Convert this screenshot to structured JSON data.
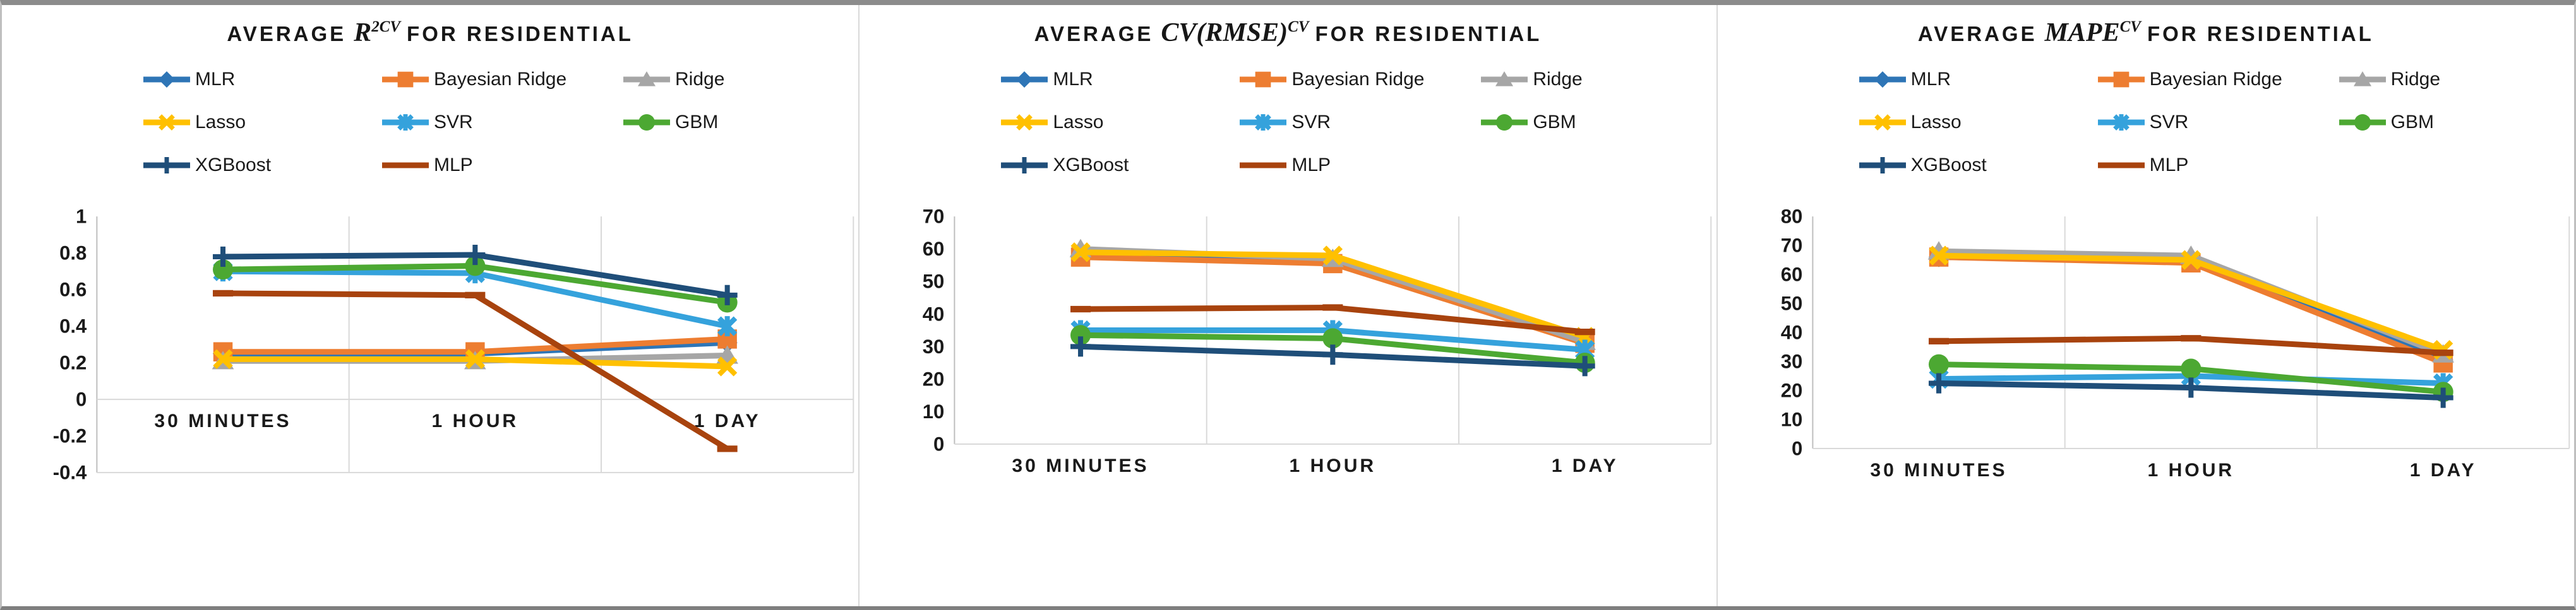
{
  "figure": {
    "description": "Three line charts comparing machine-learning model performance for residential load forecasting",
    "background": "#ffffff",
    "frame_color": "#8c8c8c",
    "separator_color": "#d9d9d9",
    "gridline_color": "#d9d9d9",
    "axis_color": "#bfbfbf"
  },
  "series_meta": [
    {
      "name": "MLR",
      "color": "#2E75B6",
      "marker": "diamond"
    },
    {
      "name": "Bayesian Ridge",
      "color": "#ED7D31",
      "marker": "square"
    },
    {
      "name": "Ridge",
      "color": "#A6A6A6",
      "marker": "triangle"
    },
    {
      "name": "Lasso",
      "color": "#FFC000",
      "marker": "x"
    },
    {
      "name": "SVR",
      "color": "#35A2DC",
      "marker": "asterisk"
    },
    {
      "name": "GBM",
      "color": "#4CA832",
      "marker": "circle"
    },
    {
      "name": "XGBoost",
      "color": "#1F4E79",
      "marker": "plus"
    },
    {
      "name": "MLP",
      "color": "#A8430E",
      "marker": "dash"
    }
  ],
  "chart_data": [
    {
      "type": "line",
      "title": {
        "prefix": "AVERAGE",
        "math": "R",
        "sup": "2CV",
        "suffix": "FOR RESIDENTIAL"
      },
      "categories": [
        "30 MINUTES",
        "1 HOUR",
        "1 DAY"
      ],
      "ylim": [
        -0.4,
        1
      ],
      "ytick_labels": [
        "1",
        "0.8",
        "0.6",
        "0.4",
        "0.2",
        "0",
        "-0.2",
        "-0.4"
      ],
      "ytick_values": [
        1,
        0.8,
        0.6,
        0.4,
        0.2,
        0,
        -0.2,
        -0.4
      ],
      "grid": "vertical-only-plus-zero-line",
      "legend_position": "top",
      "xlabels_at_zero": true,
      "series": [
        {
          "name": "MLR",
          "values": [
            0.25,
            0.25,
            0.31
          ]
        },
        {
          "name": "Bayesian Ridge",
          "values": [
            0.26,
            0.26,
            0.33
          ]
        },
        {
          "name": "Ridge",
          "values": [
            0.21,
            0.21,
            0.24
          ]
        },
        {
          "name": "Lasso",
          "values": [
            0.22,
            0.22,
            0.18
          ]
        },
        {
          "name": "SVR",
          "values": [
            0.7,
            0.69,
            0.4
          ]
        },
        {
          "name": "GBM",
          "values": [
            0.71,
            0.73,
            0.53
          ]
        },
        {
          "name": "XGBoost",
          "values": [
            0.78,
            0.79,
            0.57
          ]
        },
        {
          "name": "MLP",
          "values": [
            0.58,
            0.57,
            -0.27
          ]
        }
      ]
    },
    {
      "type": "line",
      "title": {
        "prefix": "AVERAGE",
        "math": "CV(RMSE)",
        "sup": "CV",
        "suffix": "FOR RESIDENTIAL"
      },
      "categories": [
        "30 MINUTES",
        "1 HOUR",
        "1 DAY"
      ],
      "ylim": [
        0,
        70
      ],
      "ytick_labels": [
        "70",
        "60",
        "50",
        "40",
        "30",
        "20",
        "10",
        "0"
      ],
      "ytick_values": [
        70,
        60,
        50,
        40,
        30,
        20,
        10,
        0
      ],
      "grid": "vertical-only",
      "legend_position": "top",
      "xlabels_at_zero": false,
      "series": [
        {
          "name": "MLR",
          "values": [
            58,
            56,
            31
          ]
        },
        {
          "name": "Bayesian Ridge",
          "values": [
            57.5,
            55.5,
            31
          ]
        },
        {
          "name": "Ridge",
          "values": [
            60,
            57,
            31.5
          ]
        },
        {
          "name": "Lasso",
          "values": [
            59,
            58,
            33
          ]
        },
        {
          "name": "SVR",
          "values": [
            35,
            35,
            29
          ]
        },
        {
          "name": "GBM",
          "values": [
            33.5,
            32.5,
            25
          ]
        },
        {
          "name": "XGBoost",
          "values": [
            30,
            27.5,
            24
          ]
        },
        {
          "name": "MLP",
          "values": [
            41.5,
            42,
            34.5
          ]
        }
      ]
    },
    {
      "type": "line",
      "title": {
        "prefix": "AVERAGE",
        "math": "MAPE",
        "sup": "CV",
        "suffix": "FOR RESIDENTIAL"
      },
      "categories": [
        "30 MINUTES",
        "1 HOUR",
        "1 DAY"
      ],
      "ylim": [
        0,
        80
      ],
      "ytick_labels": [
        "80",
        "70",
        "60",
        "50",
        "40",
        "30",
        "20",
        "10",
        "0"
      ],
      "ytick_values": [
        80,
        70,
        60,
        50,
        40,
        30,
        20,
        10,
        0
      ],
      "grid": "vertical-only",
      "legend_position": "top",
      "xlabels_at_zero": false,
      "series": [
        {
          "name": "MLR",
          "values": [
            66,
            64.5,
            30.5
          ]
        },
        {
          "name": "Bayesian Ridge",
          "values": [
            66,
            64,
            29.5
          ]
        },
        {
          "name": "Ridge",
          "values": [
            68,
            66.5,
            32.5
          ]
        },
        {
          "name": "Lasso",
          "values": [
            66.5,
            65,
            34
          ]
        },
        {
          "name": "SVR",
          "values": [
            24,
            25,
            22.5
          ]
        },
        {
          "name": "GBM",
          "values": [
            29,
            27.5,
            19.5
          ]
        },
        {
          "name": "XGBoost",
          "values": [
            22.5,
            21,
            17.5
          ]
        },
        {
          "name": "MLP",
          "values": [
            37,
            38,
            33
          ]
        }
      ]
    }
  ]
}
